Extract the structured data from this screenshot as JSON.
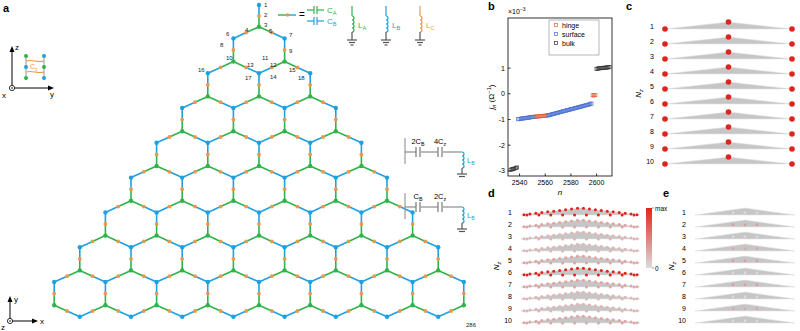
{
  "panel_labels": [
    "a",
    "b",
    "c",
    "d",
    "e"
  ],
  "lattice": {
    "rows": 8,
    "colors": {
      "A": "#2fb34a",
      "B": "#1fa0e0",
      "C": "#e8994a"
    },
    "node_labels": [
      "1",
      "2",
      "3",
      "4",
      "5",
      "6",
      "7",
      "8",
      "9",
      "10",
      "11",
      "12",
      "13",
      "14",
      "15",
      "16",
      "17",
      "18",
      "286"
    ]
  },
  "circuit_legend": {
    "equals": "=",
    "capacitors": [
      {
        "main": "C",
        "sub": "A"
      },
      {
        "main": "C",
        "sub": "B"
      }
    ],
    "inductors": [
      {
        "main": "L",
        "sub": "A"
      },
      {
        "main": "L",
        "sub": "B"
      },
      {
        "main": "L",
        "sub": "C"
      }
    ],
    "coupling": [
      [
        {
          "main": "2C",
          "sub": "B"
        },
        {
          "main": "4C",
          "sub": "z"
        },
        {
          "main": "L",
          "sub": "B"
        }
      ],
      [
        {
          "main": "C",
          "sub": "B"
        },
        {
          "main": "2C",
          "sub": "z"
        },
        {
          "main": "L",
          "sub": "B"
        }
      ]
    ]
  },
  "inset": {
    "axes": [
      "z",
      "y",
      "x"
    ],
    "coupling": {
      "main": "C",
      "sub": "z"
    }
  },
  "axes_a": [
    "y",
    "x",
    "z"
  ],
  "chart_data": {
    "type": "scatter",
    "multiplier": {
      "main": "×10",
      "sup": "−3"
    },
    "xlabel": "n",
    "ylabel": {
      "main": "j",
      "sub": "n",
      "rest": " (Ω",
      "sup": "−1",
      "end": ")"
    },
    "xlim": [
      2531,
      2612
    ],
    "xticks": [
      2540,
      2560,
      2580,
      2600
    ],
    "ylim": [
      -3.2,
      2.95
    ],
    "yticks": [
      -3,
      -2,
      -1,
      0,
      1
    ],
    "legend": "top",
    "marker": "square",
    "series": [
      {
        "name": "hinge",
        "color": "#e2603c",
        "x": [
          2552,
          2553,
          2554,
          2555,
          2556,
          2557,
          2558,
          2559,
          2560,
          2561,
          2597,
          2598,
          2599
        ],
        "values": [
          -0.89,
          -0.89,
          -0.88,
          -0.88,
          -0.87,
          -0.87,
          -0.86,
          -0.86,
          -0.85,
          -0.85,
          -0.06,
          -0.06,
          -0.05
        ]
      },
      {
        "name": "surface",
        "color": "#4a6fd4",
        "x": [
          2539,
          2540,
          2541,
          2542,
          2543,
          2544,
          2545,
          2546,
          2547,
          2548,
          2549,
          2550,
          2551,
          2562,
          2563,
          2564,
          2565,
          2566,
          2567,
          2568,
          2569,
          2570,
          2571,
          2572,
          2573,
          2574,
          2575,
          2576,
          2577,
          2578,
          2579,
          2580,
          2581,
          2582,
          2583,
          2584,
          2585,
          2586,
          2587,
          2588,
          2589,
          2590,
          2591,
          2592,
          2593,
          2594,
          2595,
          2596
        ],
        "values": [
          -0.99,
          -0.98,
          -0.97,
          -0.96,
          -0.96,
          -0.95,
          -0.94,
          -0.93,
          -0.93,
          -0.92,
          -0.91,
          -0.9,
          -0.9,
          -0.84,
          -0.83,
          -0.82,
          -0.8,
          -0.79,
          -0.78,
          -0.76,
          -0.75,
          -0.74,
          -0.72,
          -0.71,
          -0.7,
          -0.68,
          -0.67,
          -0.66,
          -0.64,
          -0.63,
          -0.62,
          -0.6,
          -0.59,
          -0.58,
          -0.56,
          -0.55,
          -0.54,
          -0.52,
          -0.51,
          -0.5,
          -0.48,
          -0.47,
          -0.46,
          -0.44,
          -0.43,
          -0.42,
          -0.4,
          -0.38
        ]
      },
      {
        "name": "bulk",
        "color": "#333333",
        "x": [
          2533,
          2534,
          2535,
          2536,
          2537,
          2538,
          2600,
          2601,
          2602,
          2603,
          2604,
          2605,
          2606,
          2607,
          2608,
          2609,
          2610
        ],
        "values": [
          -2.96,
          -2.94,
          -2.93,
          -2.91,
          -2.89,
          -2.87,
          0.97,
          0.98,
          0.99,
          1.0,
          1.0,
          1.01,
          1.01,
          1.02,
          1.02,
          1.03,
          1.04
        ]
      }
    ]
  },
  "layers": {
    "axis_label": {
      "main": "N",
      "sub": "z"
    },
    "numbers": [
      1,
      2,
      3,
      4,
      5,
      6,
      7,
      8,
      9,
      10
    ],
    "colorbar": {
      "range": [
        0,
        1
      ],
      "ticks": [
        {
          "value": 1,
          "label": "max"
        },
        0
      ]
    },
    "panels": [
      {
        "mode": "hinge",
        "intensity": [
          1,
          1,
          1,
          1,
          1,
          1,
          1,
          1,
          1,
          1
        ]
      },
      {
        "mode": "surface",
        "intensity": [
          1,
          0.3,
          0.2,
          0.2,
          0.3,
          1,
          0.3,
          0.2,
          0.2,
          0.3
        ]
      },
      {
        "mode": "bulk",
        "intensity": [
          0,
          0.35,
          0,
          0.3,
          0.35,
          0,
          0.35,
          0,
          0.3,
          0
        ]
      }
    ]
  }
}
